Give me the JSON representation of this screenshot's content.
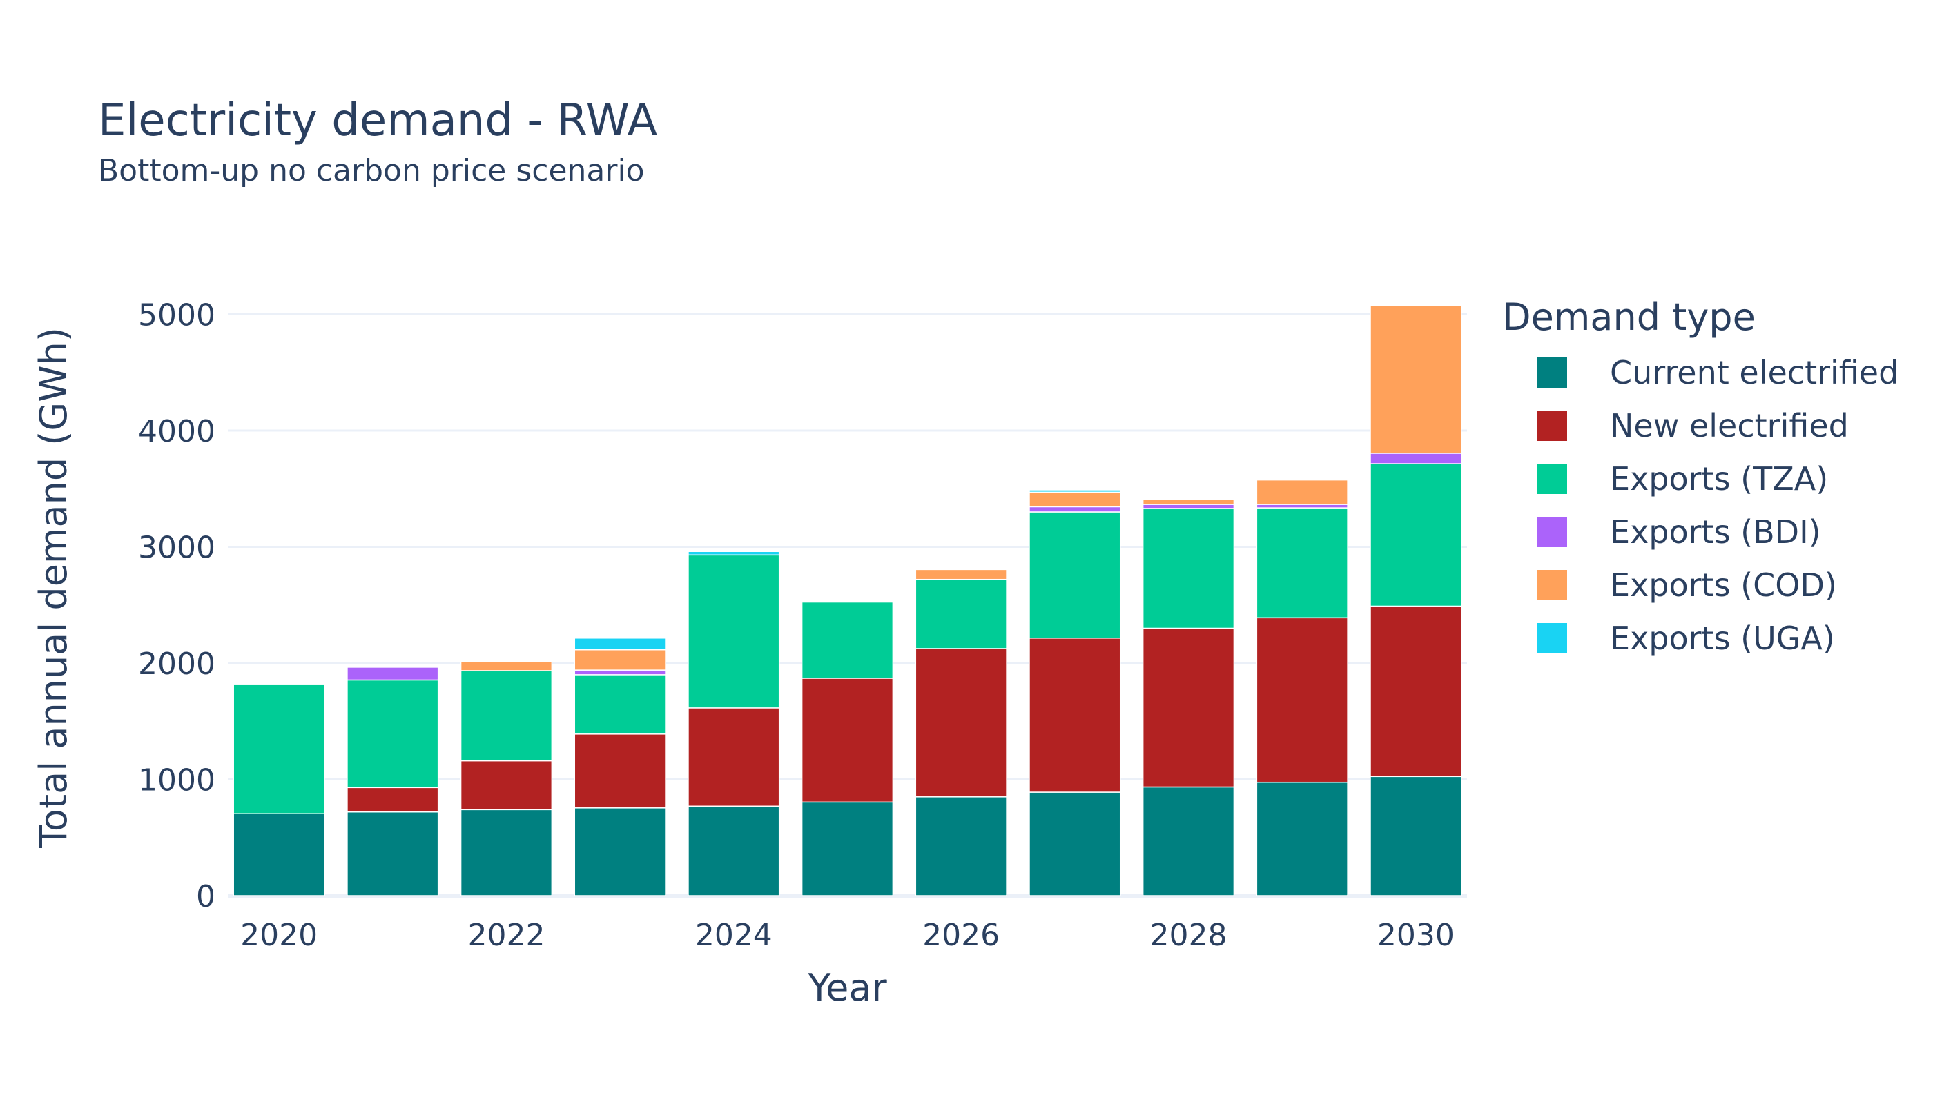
{
  "chart_data": {
    "type": "bar",
    "stacked": true,
    "title": "Electricity demand - RWA",
    "subtitle": "Bottom-up no carbon price scenario",
    "xlabel": "Year",
    "ylabel": "Total annual demand (GWh)",
    "x": [
      2020,
      2021,
      2022,
      2023,
      2024,
      2025,
      2026,
      2027,
      2028,
      2029,
      2030
    ],
    "x_tick_labels": [
      "2020",
      "2022",
      "2024",
      "2026",
      "2028",
      "2030"
    ],
    "x_tick_values": [
      2020,
      2022,
      2024,
      2026,
      2028,
      2030
    ],
    "y_tick_values": [
      0,
      1000,
      2000,
      3000,
      4000,
      5000
    ],
    "y_tick_labels": [
      "0",
      "1000",
      "2000",
      "3000",
      "4000",
      "5000"
    ],
    "ylim": [
      0,
      5300
    ],
    "grid": true,
    "legend_title": "Demand type",
    "legend_position": "right",
    "series": [
      {
        "name": "Current electrified",
        "color": "#008080",
        "values": [
          705,
          720,
          740,
          755,
          770,
          805,
          850,
          890,
          935,
          975,
          1025
        ]
      },
      {
        "name": "New electrified",
        "color": "#b22222",
        "values": [
          0,
          210,
          420,
          635,
          845,
          1065,
          1275,
          1325,
          1365,
          1415,
          1465
        ]
      },
      {
        "name": "Exports (TZA)",
        "color": "#00cc96",
        "values": [
          1110,
          925,
          775,
          510,
          1315,
          655,
          595,
          1085,
          1030,
          945,
          1225
        ]
      },
      {
        "name": "Exports (BDI)",
        "color": "#ab63fa",
        "values": [
          0,
          110,
          0,
          40,
          0,
          0,
          0,
          45,
          35,
          30,
          90
        ]
      },
      {
        "name": "Exports (COD)",
        "color": "#ffa15a",
        "values": [
          0,
          0,
          80,
          175,
          0,
          0,
          85,
          125,
          45,
          210,
          1270
        ]
      },
      {
        "name": "Exports (UGA)",
        "color": "#19d3f3",
        "values": [
          0,
          0,
          0,
          100,
          30,
          0,
          0,
          20,
          0,
          0,
          0
        ]
      }
    ]
  }
}
